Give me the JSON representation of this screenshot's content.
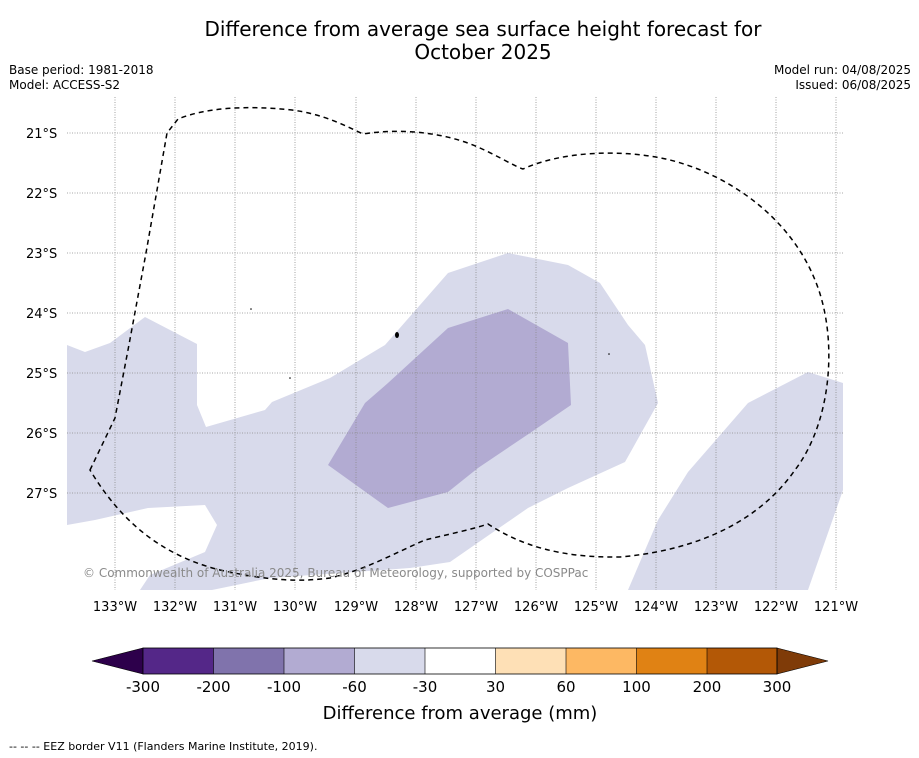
{
  "map": {
    "title_line1": "Difference from average sea surface height forecast for",
    "title_line2": "October 2025",
    "base_period": "Base period: 1981-2018",
    "model": "Model: ACCESS-S2",
    "model_run": "Model run: 04/08/2025",
    "issued": "Issued: 06/08/2025",
    "copyright": "© Commonwealth of Australia 2025, Bureau of Meteorology, supported by COSPPac",
    "footnote": "-- -- -- EEZ border V11 (Flanders Marine Institute, 2019).",
    "lat_labels": [
      "21°S",
      "22°S",
      "23°S",
      "24°S",
      "25°S",
      "26°S",
      "27°S"
    ],
    "lon_labels": [
      "133°W",
      "132°W",
      "131°W",
      "130°W",
      "129°W",
      "128°W",
      "127°W",
      "126°W",
      "125°W",
      "124°W",
      "123°W",
      "122°W",
      "121°W"
    ]
  },
  "colorbar": {
    "title": "Difference from average (mm)",
    "tick_labels": [
      "-300",
      "-200",
      "-100",
      "-60",
      "-30",
      "30",
      "60",
      "100",
      "200",
      "300"
    ],
    "colors": [
      "#2d004b",
      "#542788",
      "#8073ac",
      "#b2abd2",
      "#d8daeb",
      "#ffffff",
      "#fee0b6",
      "#fdb863",
      "#e08214",
      "#b35806",
      "#7f3b08"
    ]
  }
}
